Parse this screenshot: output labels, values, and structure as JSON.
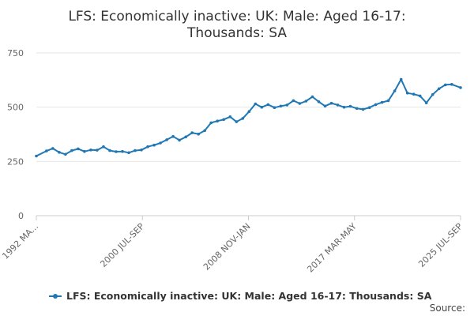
{
  "chart_data": {
    "type": "line",
    "title_lines": [
      "LFS: Economically inactive: UK: Male: Aged 16-17:",
      "Thousands: SA"
    ],
    "y_ticks": [
      0,
      250,
      500,
      750
    ],
    "ylim": [
      0,
      750
    ],
    "x_tick_labels": [
      "1992 MA...",
      "2000 JUL-SEP",
      "2008 NOV-JAN",
      "2017 MAR-MAY",
      "2025 JUL-SEP"
    ],
    "legend_position": "bottom",
    "grid": true,
    "series": [
      {
        "name": "LFS: Economically inactive: UK: Male: Aged 16-17: Thousands: SA",
        "color": "#1f77b4",
        "x": [
          1992.2,
          1993.0,
          1993.5,
          1994.0,
          1994.5,
          1995.0,
          1995.5,
          1996.0,
          1996.5,
          1997.0,
          1997.5,
          1998.0,
          1998.5,
          1999.0,
          1999.5,
          2000.0,
          2000.5,
          2001.0,
          2001.5,
          2002.0,
          2002.5,
          2003.0,
          2003.5,
          2004.0,
          2004.5,
          2005.0,
          2005.5,
          2006.0,
          2006.5,
          2007.0,
          2007.5,
          2008.0,
          2008.5,
          2009.0,
          2009.5,
          2010.0,
          2010.5,
          2011.0,
          2011.5,
          2012.0,
          2012.5,
          2013.0,
          2013.5,
          2014.0,
          2014.5,
          2015.0,
          2015.5,
          2016.0,
          2016.5,
          2017.0,
          2017.5,
          2018.0,
          2018.5,
          2019.0,
          2019.5,
          2020.0,
          2020.5,
          2021.0,
          2021.5,
          2022.0,
          2022.5,
          2023.0,
          2023.5,
          2024.0,
          2024.5,
          2025.0,
          2025.7
        ],
        "values": [
          275,
          298,
          310,
          292,
          283,
          300,
          308,
          296,
          303,
          302,
          318,
          300,
          295,
          296,
          290,
          300,
          303,
          318,
          325,
          335,
          350,
          365,
          348,
          363,
          382,
          376,
          392,
          428,
          436,
          443,
          456,
          433,
          448,
          480,
          515,
          500,
          512,
          498,
          505,
          510,
          530,
          517,
          528,
          548,
          525,
          505,
          518,
          510,
          500,
          504,
          494,
          490,
          498,
          512,
          522,
          530,
          575,
          628,
          565,
          560,
          552,
          520,
          558,
          585,
          603,
          605,
          590
        ]
      }
    ]
  },
  "source_label": "Source:"
}
